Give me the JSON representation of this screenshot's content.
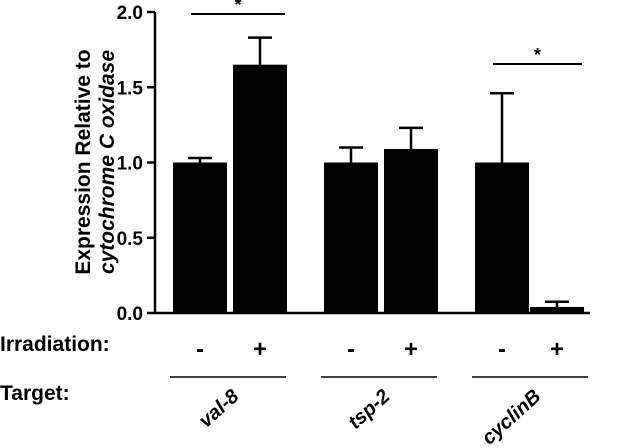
{
  "chart_data": {
    "type": "bar",
    "ylabel_line1": "Expression Relative to",
    "ylabel_line2": "cytochrome C oxidase",
    "ylim": [
      0,
      2.0
    ],
    "yticks": [
      "0.0",
      "0.5",
      "1.0",
      "1.5",
      "2.0"
    ],
    "row_labels": {
      "irradiation": "Irradiation:",
      "target": "Target:"
    },
    "groups": [
      {
        "target": "val-8",
        "significance": "*",
        "bars": [
          {
            "irradiation": "-",
            "value": 1.0,
            "error": 0.03
          },
          {
            "irradiation": "+",
            "value": 1.65,
            "error": 0.18
          }
        ]
      },
      {
        "target": "tsp-2",
        "significance": "",
        "bars": [
          {
            "irradiation": "-",
            "value": 1.0,
            "error": 0.1
          },
          {
            "irradiation": "+",
            "value": 1.09,
            "error": 0.14
          }
        ]
      },
      {
        "target": "cyclinB",
        "significance": "*",
        "bars": [
          {
            "irradiation": "-",
            "value": 1.0,
            "error": 0.46
          },
          {
            "irradiation": "+",
            "value": 0.04,
            "error": 0.035
          }
        ]
      }
    ],
    "colors": {
      "bar": "#000000",
      "axis": "#000000"
    },
    "grid": false
  }
}
